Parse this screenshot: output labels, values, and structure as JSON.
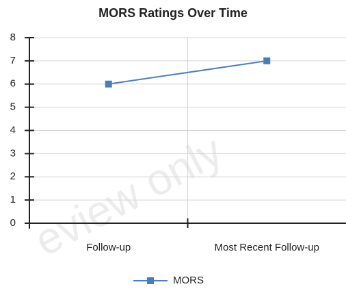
{
  "chart_data": {
    "type": "line",
    "title": "MORS Ratings Over Time",
    "categories": [
      "Follow-up",
      "Most Recent Follow-up"
    ],
    "series": [
      {
        "name": "MORS",
        "color": "#4a7ebb",
        "values": [
          6,
          7
        ]
      }
    ],
    "ylim": [
      0,
      8
    ],
    "yticks": [
      0,
      1,
      2,
      3,
      4,
      5,
      6,
      7,
      8
    ],
    "grid": true,
    "legend": "bottom",
    "watermark": "eview only"
  }
}
